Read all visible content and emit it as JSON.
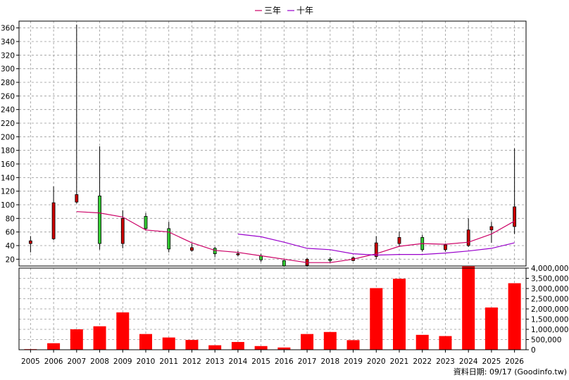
{
  "chart_data": {
    "type": "candlestick-with-volume",
    "legend": [
      {
        "label": "三年",
        "color": "#cc0066"
      },
      {
        "label": "十年",
        "color": "#9900cc"
      }
    ],
    "legend_placement": "top-center",
    "grid": true,
    "years": [
      "2005",
      "2006",
      "2007",
      "2008",
      "2009",
      "2010",
      "2011",
      "2012",
      "2013",
      "2014",
      "2015",
      "2016",
      "2017",
      "2018",
      "2019",
      "2020",
      "2021",
      "2022",
      "2023",
      "2024",
      "2025",
      "2026"
    ],
    "price_axis": {
      "ylim": [
        10,
        370
      ],
      "ticks": [
        20,
        40,
        60,
        80,
        100,
        120,
        140,
        160,
        180,
        200,
        220,
        240,
        260,
        280,
        300,
        320,
        340,
        360
      ],
      "position": "left"
    },
    "candles": [
      {
        "year": "2005",
        "open": 43,
        "close": 47,
        "high": 54,
        "low": 30
      },
      {
        "year": "2006",
        "open": 50,
        "close": 103,
        "high": 127,
        "low": 48
      },
      {
        "year": "2007",
        "open": 104,
        "close": 115,
        "high": 365,
        "low": 102
      },
      {
        "year": "2008",
        "open": 113,
        "close": 43,
        "high": 186,
        "low": 34
      },
      {
        "year": "2009",
        "open": 43,
        "close": 80,
        "high": 92,
        "low": 36
      },
      {
        "year": "2010",
        "open": 83,
        "close": 65,
        "high": 88,
        "low": 62
      },
      {
        "year": "2011",
        "open": 65,
        "close": 35,
        "high": 75,
        "low": 30
      },
      {
        "year": "2012",
        "open": 33,
        "close": 37,
        "high": 43,
        "low": 31
      },
      {
        "year": "2013",
        "open": 36,
        "close": 28,
        "high": 38,
        "low": 23
      },
      {
        "year": "2014",
        "open": 27,
        "close": 28,
        "high": 32,
        "low": 24
      },
      {
        "year": "2015",
        "open": 25,
        "close": 19,
        "high": 28,
        "low": 16
      },
      {
        "year": "2016",
        "open": 18,
        "close": 10,
        "high": 19,
        "low": 9
      },
      {
        "year": "2017",
        "open": 11,
        "close": 20,
        "high": 22,
        "low": 9
      },
      {
        "year": "2018",
        "open": 20,
        "close": 18,
        "high": 23,
        "low": 15
      },
      {
        "year": "2019",
        "open": 18,
        "close": 22,
        "high": 24,
        "low": 17
      },
      {
        "year": "2020",
        "open": 24,
        "close": 44,
        "high": 54,
        "low": 20
      },
      {
        "year": "2021",
        "open": 43,
        "close": 52,
        "high": 61,
        "low": 38
      },
      {
        "year": "2022",
        "open": 52,
        "close": 34,
        "high": 56,
        "low": 31
      },
      {
        "year": "2023",
        "open": 34,
        "close": 41,
        "high": 43,
        "low": 31
      },
      {
        "year": "2024",
        "open": 40,
        "close": 63,
        "high": 80,
        "low": 38
      },
      {
        "year": "2025",
        "open": 63,
        "close": 68,
        "high": 75,
        "low": 44
      },
      {
        "year": "2026",
        "open": 68,
        "close": 97,
        "high": 183,
        "low": 57
      }
    ],
    "ma3": [
      {
        "year": "2007",
        "value": 90
      },
      {
        "year": "2008",
        "value": 88
      },
      {
        "year": "2009",
        "value": 82
      },
      {
        "year": "2010",
        "value": 63
      },
      {
        "year": "2011",
        "value": 60
      },
      {
        "year": "2012",
        "value": 44
      },
      {
        "year": "2013",
        "value": 33
      },
      {
        "year": "2014",
        "value": 30
      },
      {
        "year": "2015",
        "value": 25
      },
      {
        "year": "2016",
        "value": 20
      },
      {
        "year": "2017",
        "value": 15
      },
      {
        "year": "2018",
        "value": 15
      },
      {
        "year": "2019",
        "value": 20
      },
      {
        "year": "2020",
        "value": 28
      },
      {
        "year": "2021",
        "value": 39
      },
      {
        "year": "2022",
        "value": 43
      },
      {
        "year": "2023",
        "value": 42
      },
      {
        "year": "2024",
        "value": 45
      },
      {
        "year": "2025",
        "value": 57
      },
      {
        "year": "2026",
        "value": 76
      }
    ],
    "ma10": [
      {
        "year": "2014",
        "value": 57
      },
      {
        "year": "2015",
        "value": 53
      },
      {
        "year": "2016",
        "value": 45
      },
      {
        "year": "2017",
        "value": 36
      },
      {
        "year": "2018",
        "value": 34
      },
      {
        "year": "2019",
        "value": 28
      },
      {
        "year": "2020",
        "value": 26
      },
      {
        "year": "2021",
        "value": 27
      },
      {
        "year": "2022",
        "value": 27
      },
      {
        "year": "2023",
        "value": 29
      },
      {
        "year": "2024",
        "value": 32
      },
      {
        "year": "2025",
        "value": 36
      },
      {
        "year": "2026",
        "value": 44
      }
    ],
    "volume_axis": {
      "ylim": [
        0,
        4000000
      ],
      "ticks": [
        0,
        500000,
        1000000,
        1500000,
        2000000,
        2500000,
        3000000,
        3500000,
        4000000
      ],
      "tick_labels": [
        "0",
        "500,000",
        "1,000,000",
        "1,500,000",
        "2,000,000",
        "2,500,000",
        "3,000,000",
        "3,500,000",
        "4,000,000"
      ],
      "position": "right"
    },
    "volume": [
      30000,
      320000,
      1000000,
      1150000,
      1830000,
      770000,
      600000,
      480000,
      220000,
      380000,
      180000,
      110000,
      770000,
      870000,
      470000,
      3020000,
      3480000,
      730000,
      670000,
      4080000,
      2070000,
      3260000
    ],
    "up_color": "#cc0000",
    "down_color": "#33cc33",
    "volume_color": "#ff0000"
  },
  "source_label": "資料日期: 09/17 (Goodinfo.tw)"
}
